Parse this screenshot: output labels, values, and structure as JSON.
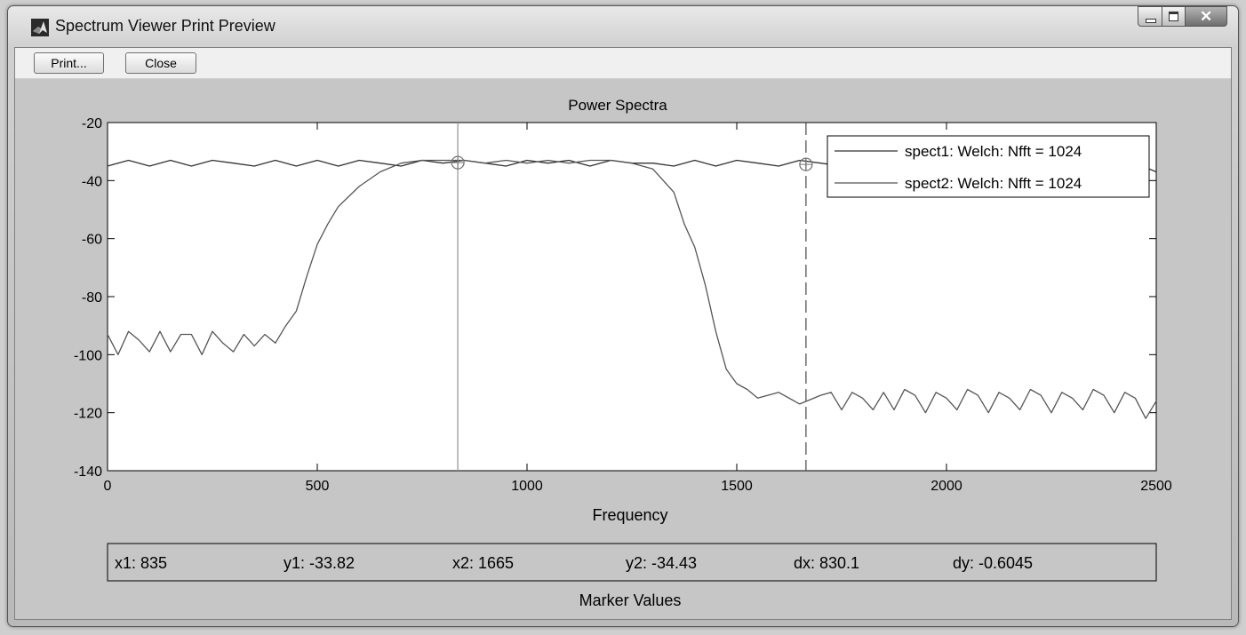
{
  "window": {
    "title": "Spectrum Viewer Print Preview",
    "icon": "matlab-icon",
    "caption_buttons": [
      "minimize",
      "maximize",
      "close"
    ]
  },
  "toolbar": {
    "print_label": "Print...",
    "close_label": "Close"
  },
  "chart_data": {
    "type": "line",
    "title": "Power Spectra",
    "xlabel": "Frequency",
    "ylabel": "",
    "xlim": [
      0,
      2500
    ],
    "ylim": [
      -140,
      -20
    ],
    "xticks": [
      "0",
      "500",
      "1000",
      "1500",
      "2000",
      "2500"
    ],
    "yticks": [
      "-20",
      "-40",
      "-60",
      "-80",
      "-100",
      "-120",
      "-140"
    ],
    "grid": false,
    "legend_placement": "top-right",
    "series": [
      {
        "name": "spect1: Welch: Nfft = 1024",
        "x": [
          0,
          50,
          100,
          150,
          200,
          250,
          300,
          350,
          400,
          450,
          500,
          550,
          600,
          650,
          700,
          750,
          800,
          850,
          900,
          950,
          1000,
          1050,
          1100,
          1150,
          1200,
          1250,
          1300,
          1350,
          1400,
          1450,
          1500,
          1550,
          1600,
          1650,
          1700,
          1750,
          1800,
          1850,
          1900,
          1950,
          2000,
          2050,
          2100,
          2150,
          2200,
          2250,
          2300,
          2350,
          2400,
          2450,
          2500
        ],
        "y": [
          -35,
          -33,
          -35,
          -33,
          -35,
          -33,
          -34,
          -35,
          -33,
          -35,
          -33,
          -35,
          -33,
          -34,
          -35,
          -33,
          -34,
          -33,
          -34,
          -35,
          -33,
          -34,
          -33,
          -35,
          -33,
          -34,
          -34,
          -35,
          -33,
          -35,
          -33,
          -34,
          -35,
          -33,
          -34,
          -35,
          -33,
          -34,
          -35,
          -33,
          -34,
          -35,
          -33,
          -34,
          -35,
          -33,
          -34,
          -35,
          -33,
          -34,
          -37
        ]
      },
      {
        "name": "spect2: Welch: Nfft = 1024",
        "x": [
          0,
          25,
          50,
          75,
          100,
          125,
          150,
          175,
          200,
          225,
          250,
          275,
          300,
          325,
          350,
          375,
          400,
          425,
          450,
          475,
          500,
          525,
          550,
          600,
          650,
          700,
          750,
          800,
          850,
          900,
          950,
          1000,
          1050,
          1100,
          1150,
          1200,
          1250,
          1300,
          1350,
          1375,
          1400,
          1425,
          1450,
          1475,
          1500,
          1525,
          1550,
          1600,
          1650,
          1700,
          1725,
          1750,
          1775,
          1800,
          1825,
          1850,
          1875,
          1900,
          1925,
          1950,
          1975,
          2000,
          2025,
          2050,
          2075,
          2100,
          2125,
          2150,
          2175,
          2200,
          2225,
          2250,
          2275,
          2300,
          2325,
          2350,
          2375,
          2400,
          2425,
          2450,
          2475,
          2500
        ],
        "y": [
          -93,
          -100,
          -92,
          -95,
          -99,
          -92,
          -99,
          -93,
          -93,
          -100,
          -92,
          -96,
          -99,
          -93,
          -97,
          -93,
          -96,
          -90,
          -85,
          -73,
          -62,
          -55,
          -49,
          -42,
          -37,
          -34,
          -33,
          -33,
          -33,
          -34,
          -33,
          -34,
          -33,
          -34,
          -33,
          -33,
          -34,
          -36,
          -44,
          -55,
          -63,
          -76,
          -92,
          -105,
          -110,
          -112,
          -115,
          -113,
          -117,
          -114,
          -113,
          -119,
          -113,
          -115,
          -119,
          -113,
          -119,
          -112,
          -114,
          -120,
          -113,
          -115,
          -119,
          -112,
          -114,
          -120,
          -113,
          -115,
          -119,
          -112,
          -114,
          -120,
          -113,
          -115,
          -119,
          -112,
          -114,
          -120,
          -113,
          -115,
          -122,
          -116
        ]
      }
    ],
    "markers": [
      {
        "name": "marker1",
        "x": 835,
        "y": -33.82,
        "style": "solid"
      },
      {
        "name": "marker2",
        "x": 1665,
        "y": -34.43,
        "style": "dashed"
      }
    ],
    "colors": {
      "plot_bg": "#ffffff",
      "line1": "#333333",
      "line2": "#555555",
      "marker1": "#9a9a9a",
      "marker2": "#555555"
    }
  },
  "marker_values": {
    "title": "Marker Values",
    "items": [
      "x1: 835",
      "y1: -33.82",
      "x2: 1665",
      "y2: -34.43",
      "dx: 830.1",
      "dy: -0.6045"
    ]
  }
}
